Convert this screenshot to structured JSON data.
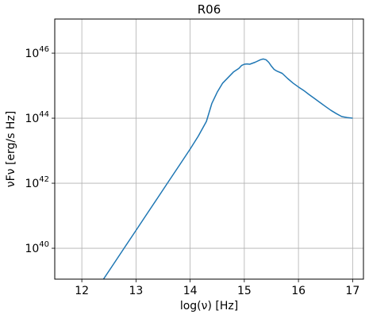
{
  "chart_data": {
    "type": "line",
    "title": "R06",
    "xlabel": "log(ν) [Hz]",
    "ylabel": "νFν [erg/s Hz]",
    "xlim": [
      11.5,
      17.2
    ],
    "ylim_log10": [
      39.05,
      47.05
    ],
    "y_scale": "log",
    "grid": true,
    "x_ticks": [
      12,
      13,
      14,
      15,
      16,
      17
    ],
    "x_tick_labels": [
      "12",
      "13",
      "14",
      "15",
      "16",
      "17"
    ],
    "y_ticks_log10": [
      40,
      42,
      44,
      46
    ],
    "y_tick_labels": [
      {
        "base": "10",
        "exp": "40"
      },
      {
        "base": "10",
        "exp": "42"
      },
      {
        "base": "10",
        "exp": "44"
      },
      {
        "base": "10",
        "exp": "46"
      }
    ],
    "series": [
      {
        "color": "#1f77b4",
        "x": [
          12.4,
          12.6,
          12.8,
          13.0,
          13.2,
          13.4,
          13.6,
          13.8,
          14.0,
          14.15,
          14.3,
          14.4,
          14.5,
          14.6,
          14.7,
          14.8,
          14.9,
          14.95,
          15.0,
          15.05,
          15.1,
          15.2,
          15.3,
          15.35,
          15.4,
          15.45,
          15.5,
          15.55,
          15.6,
          15.7,
          15.8,
          15.9,
          16.0,
          16.1,
          16.2,
          16.3,
          16.4,
          16.5,
          16.6,
          16.7,
          16.8,
          16.9,
          17.0
        ],
        "log10_y": [
          39.05,
          39.55,
          40.05,
          40.55,
          41.05,
          41.55,
          42.05,
          42.55,
          43.05,
          43.45,
          43.9,
          44.45,
          44.8,
          45.08,
          45.25,
          45.42,
          45.53,
          45.62,
          45.66,
          45.67,
          45.66,
          45.72,
          45.8,
          45.82,
          45.8,
          45.72,
          45.6,
          45.5,
          45.45,
          45.38,
          45.22,
          45.08,
          44.96,
          44.85,
          44.72,
          44.6,
          44.48,
          44.36,
          44.24,
          44.14,
          44.05,
          44.02,
          44.0
        ]
      }
    ]
  }
}
